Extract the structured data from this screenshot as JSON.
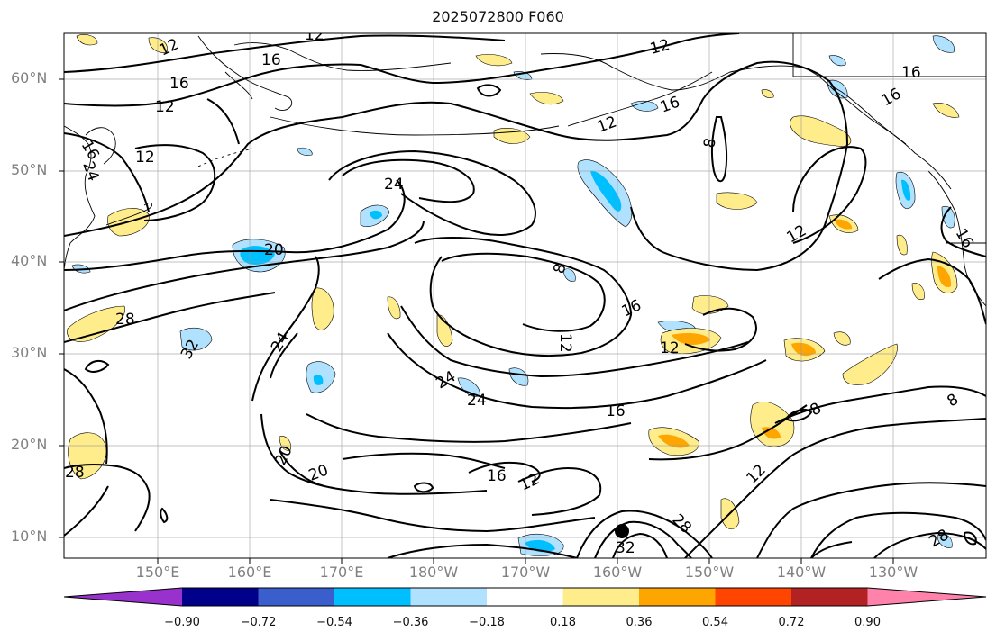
{
  "title": "2025072800 F060",
  "lat_labels": [
    "60°N",
    "50°N",
    "40°N",
    "30°N",
    "20°N",
    "10°N"
  ],
  "lon_labels": [
    "150°E",
    "160°E",
    "170°E",
    "180°W",
    "170°W",
    "160°W",
    "150°W",
    "140°W",
    "130°W"
  ],
  "contour_labels": [
    "12",
    "12",
    "16",
    "16",
    "12",
    "12",
    "16",
    "24",
    "16",
    "12",
    "24",
    "20",
    "28",
    "32",
    "24",
    "8",
    "12",
    "16",
    "12",
    "16",
    "24",
    "24",
    "16",
    "8",
    "8",
    "20",
    "20",
    "16",
    "12",
    "12",
    "28",
    "32",
    "28",
    "16",
    "28"
  ],
  "colorbar": {
    "tick_labels": [
      "−0.90",
      "−0.72",
      "−0.54",
      "−0.36",
      "−0.18",
      "0.18",
      "0.36",
      "0.54",
      "0.72",
      "0.90"
    ],
    "colors": [
      "#9932cc",
      "#00008b",
      "#3a5fcd",
      "#00bfff",
      "#b0e2ff",
      "#ffffff",
      "#ffec8b",
      "#ffa500",
      "#ff4500",
      "#b22222",
      "#ff82ab"
    ]
  }
}
